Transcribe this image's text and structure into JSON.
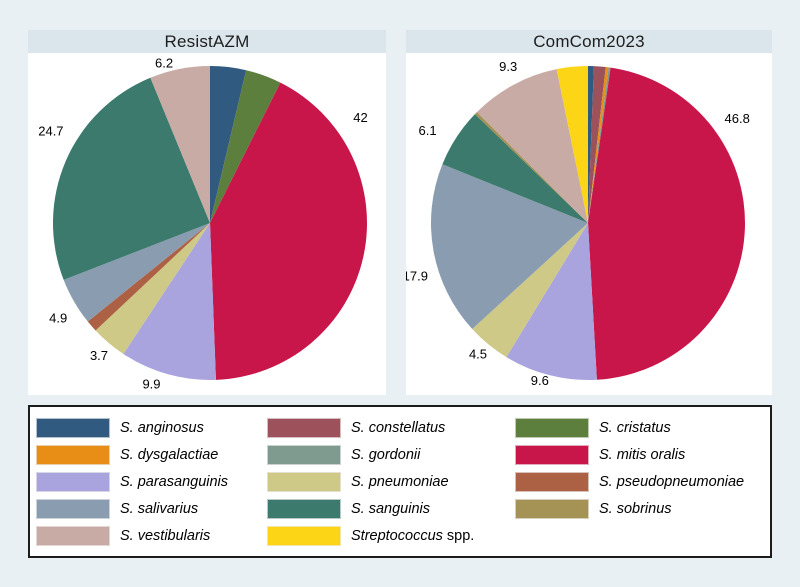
{
  "colors": {
    "S. anginosus": "#315a80",
    "S. constellatus": "#9d515a",
    "S. cristatus": "#5d7f3e",
    "S. dysgalactiae": "#e88d16",
    "S. gordonii": "#7f9b90",
    "S. mitis oralis": "#c8164b",
    "S. parasanguinis": "#a9a3de",
    "S. pneumoniae": "#cfc987",
    "S. pseudopneumoniae": "#ac6044",
    "S. salivarius": "#8a9cb0",
    "S. sanguinis": "#3b7a6c",
    "S. sobrinus": "#a59355",
    "S. vestibularis": "#c9aba5",
    "Streptococcus": "#fdd517"
  },
  "chart_data": [
    {
      "type": "pie",
      "title": "ResistAZM",
      "start_angle_deg": 0,
      "direction": "clockwise",
      "labels_shown_outside": true,
      "slices": [
        {
          "species": "S. anginosus",
          "value": 3.7
        },
        {
          "species": "S. cristatus",
          "value": 3.7
        },
        {
          "species": "S. mitis oralis",
          "value": 42,
          "label": "42",
          "label_angle": 55,
          "label_r": 1.17
        },
        {
          "species": "S. parasanguinis",
          "value": 9.9,
          "label": "9.9",
          "label_angle": 200,
          "label_r": 1.09
        },
        {
          "species": "S. pneumoniae",
          "value": 3.7,
          "label": "3.7",
          "label_angle": 220,
          "label_r": 1.1
        },
        {
          "species": "S. pseudopneumoniae",
          "value": 1.2
        },
        {
          "species": "S. salivarius",
          "value": 4.9,
          "label": "4.9",
          "label_angle": 238,
          "label_r": 1.14
        },
        {
          "species": "S. sanguinis",
          "value": 24.7,
          "label": "24.7",
          "label_angle": 300,
          "label_r": 1.17
        },
        {
          "species": "S. vestibularis",
          "value": 6.2,
          "label": "6.2",
          "label_angle": 344,
          "label_r": 1.06
        }
      ]
    },
    {
      "type": "pie",
      "title": "ComCom2023",
      "start_angle_deg": 0,
      "direction": "clockwise",
      "labels_shown_outside": true,
      "slices": [
        {
          "species": "S. anginosus",
          "value": 0.6
        },
        {
          "species": "S. constellatus",
          "value": 1.2
        },
        {
          "species": "S. dysgalactiae",
          "value": 0.3
        },
        {
          "species": "S. gordonii",
          "value": 0.2
        },
        {
          "species": "S. mitis oralis",
          "value": 46.8,
          "label": "46.8",
          "label_angle": 55,
          "label_r": 1.16
        },
        {
          "species": "S. parasanguinis",
          "value": 9.6,
          "label": "9.6",
          "label_angle": 197,
          "label_r": 1.05
        },
        {
          "species": "S. pneumoniae",
          "value": 4.5,
          "label": "4.5",
          "label_angle": 220,
          "label_r": 1.09
        },
        {
          "species": "S. salivarius",
          "value": 17.9,
          "label": "17.9",
          "label_angle": 253,
          "label_r": 1.15
        },
        {
          "species": "S. sanguinis",
          "value": 6.1,
          "label": "6.1",
          "label_angle": 300,
          "label_r": 1.18
        },
        {
          "species": "S. sobrinus",
          "value": 0.3
        },
        {
          "species": "S. vestibularis",
          "value": 9.3,
          "label": "9.3",
          "label_angle": 333,
          "label_r": 1.12
        },
        {
          "species": "Streptococcus",
          "value": 3.2
        }
      ]
    }
  ],
  "legend": {
    "position": "bottom",
    "items": [
      {
        "species": "S. anginosus",
        "label": "S. anginosus",
        "suffix": ""
      },
      {
        "species": "S. constellatus",
        "label": "S. constellatus",
        "suffix": ""
      },
      {
        "species": "S. cristatus",
        "label": "S. cristatus",
        "suffix": ""
      },
      {
        "species": "S. dysgalactiae",
        "label": "S. dysgalactiae",
        "suffix": ""
      },
      {
        "species": "S. gordonii",
        "label": "S. gordonii",
        "suffix": ""
      },
      {
        "species": "S. mitis oralis",
        "label": "S. mitis oralis",
        "suffix": ""
      },
      {
        "species": "S. parasanguinis",
        "label": "S. parasanguinis",
        "suffix": ""
      },
      {
        "species": "S. pneumoniae",
        "label": "S. pneumoniae",
        "suffix": ""
      },
      {
        "species": "S. pseudopneumoniae",
        "label": "S. pseudopneumoniae",
        "suffix": ""
      },
      {
        "species": "S. salivarius",
        "label": "S. salivarius",
        "suffix": ""
      },
      {
        "species": "S. sanguinis",
        "label": "S. sanguinis",
        "suffix": ""
      },
      {
        "species": "S. sobrinus",
        "label": "S. sobrinus",
        "suffix": ""
      },
      {
        "species": "S. vestibularis",
        "label": "S. vestibularis",
        "suffix": ""
      },
      {
        "species": "Streptococcus",
        "label": "Streptococcus",
        "suffix": " spp."
      }
    ]
  }
}
